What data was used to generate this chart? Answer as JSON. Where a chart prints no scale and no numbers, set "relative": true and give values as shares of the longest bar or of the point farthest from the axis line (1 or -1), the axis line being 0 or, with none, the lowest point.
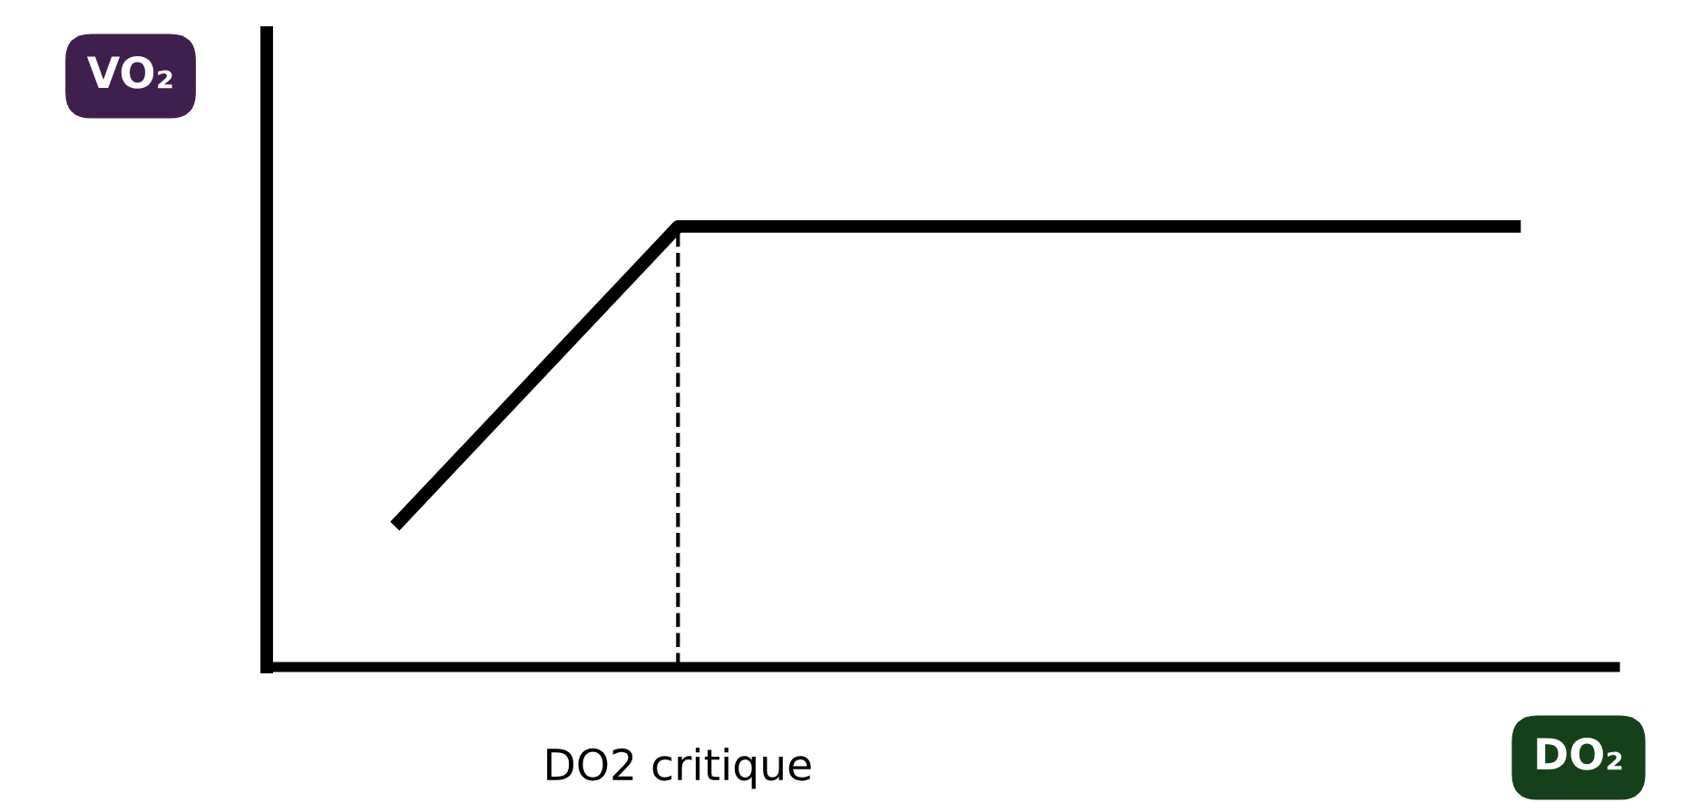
{
  "chart_data": {
    "type": "line",
    "relative": true,
    "xlabel": "DO₂",
    "ylabel": "VO₂",
    "categories": [
      null,
      null,
      null,
      null,
      null
    ],
    "series": [
      {
        "color": "#000000",
        "values": [
          0.33,
          1,
          1,
          1,
          1
        ]
      }
    ],
    "annotations": [
      "DO2 critique"
    ],
    "grid": false,
    "legend": false,
    "marker": "none",
    "line_style": "solid"
  }
}
